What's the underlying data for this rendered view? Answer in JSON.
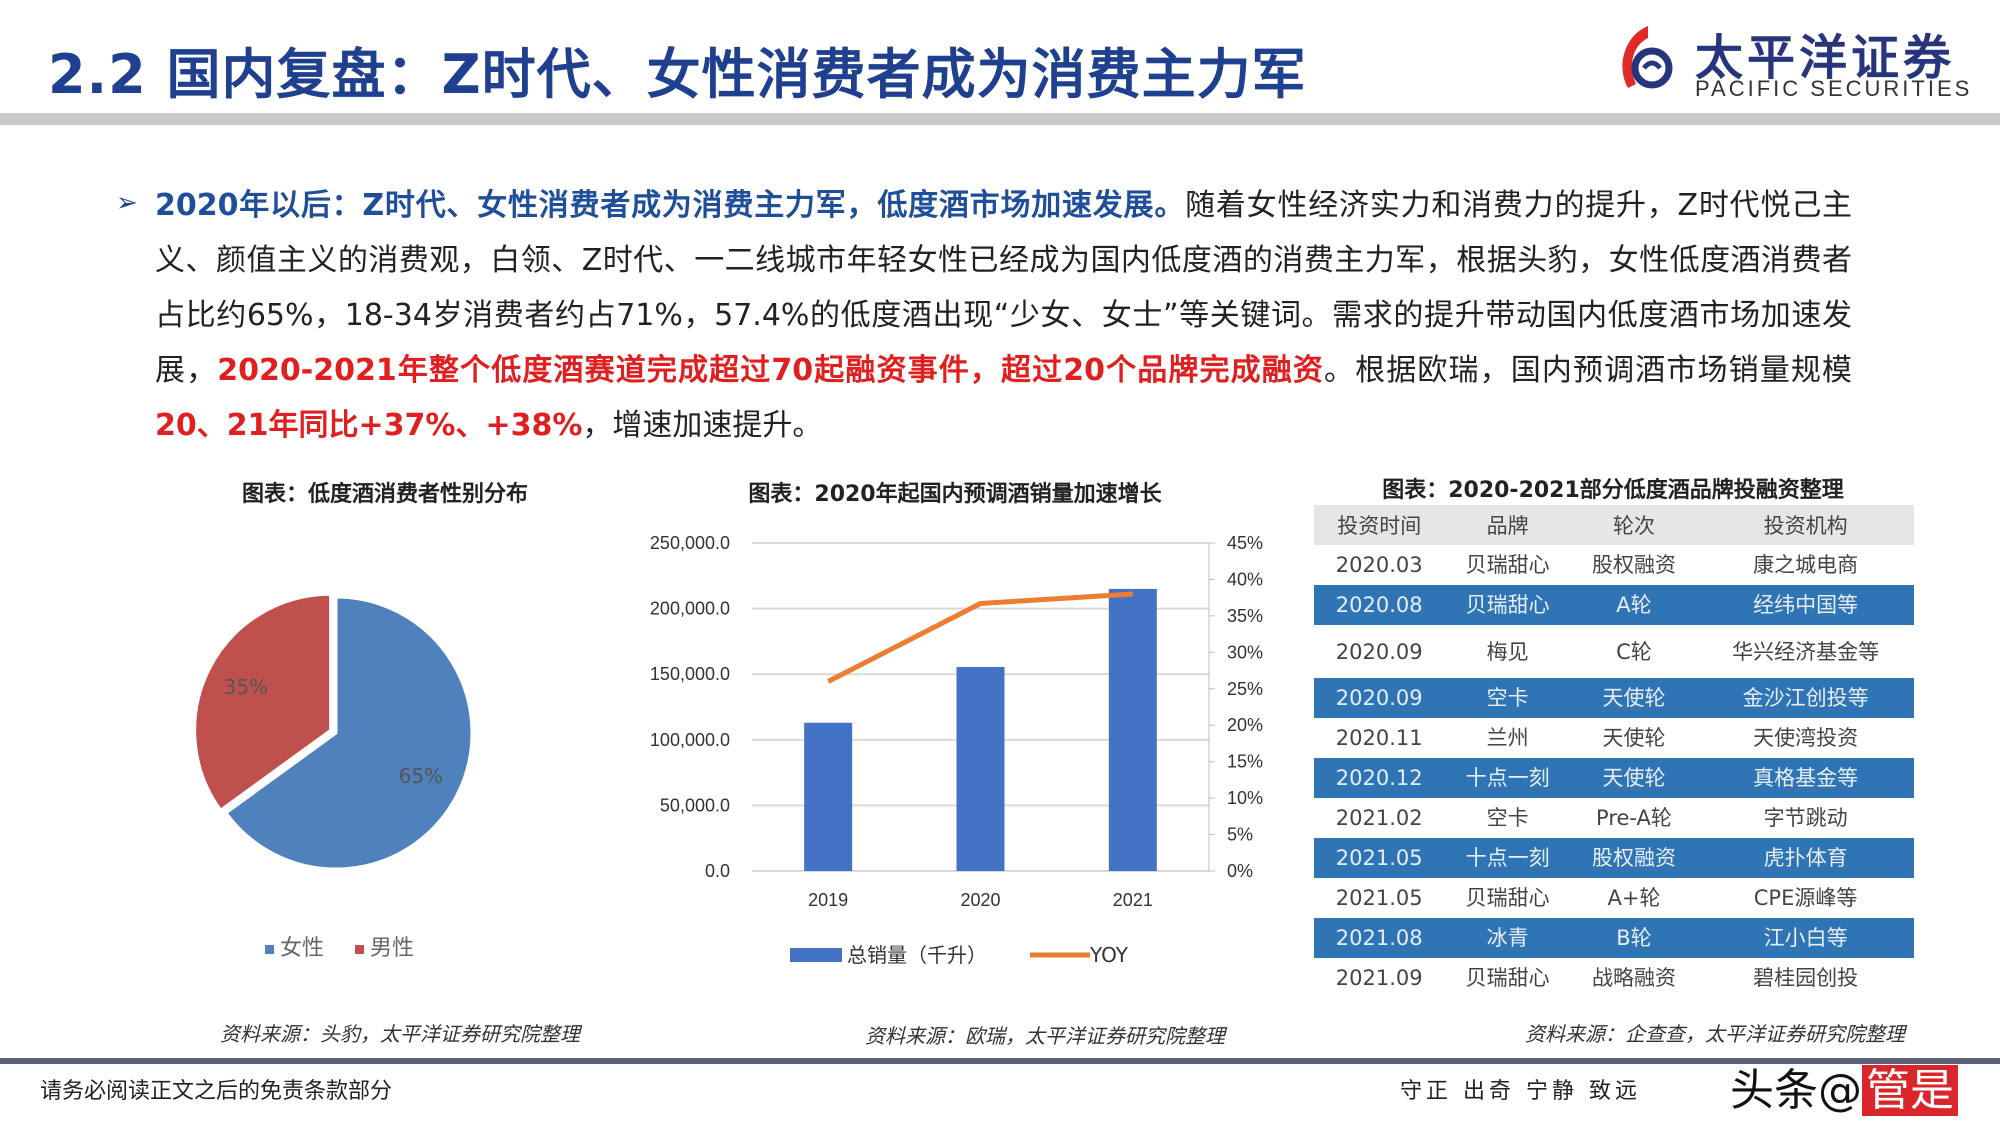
{
  "header": {
    "title": "2.2 国内复盘：Z时代、女性消费者成为消费主力军",
    "logo_cn": "太平洋证券",
    "logo_en": "PACIFIC SECURITIES"
  },
  "body": {
    "bullet_icon": "arrow-right-icon",
    "segments": [
      {
        "text": "2020年以后：Z时代、女性消费者成为消费主力军，低度酒市场加速发展。",
        "style": "blue"
      },
      {
        "text": "随着女性经济实力和消费力的提升，Z时代悦己主义、颜值主义的消费观，白领、Z时代、一二线城市年轻女性已经成为国内低度酒的消费主力军，根据头豹，女性低度酒消费者占比约65%，18-34岁消费者约占71%，57.4%的低度酒出现“少女、女士”等关键词。需求的提升带动国内低度酒市场加速发展，",
        "style": "normal"
      },
      {
        "text": "2020-2021年整个低度酒赛道完成超过70起融资事件，超过20个品牌完成融资",
        "style": "red"
      },
      {
        "text": "。根据欧瑞，国内预调酒市场销量规模",
        "style": "normal"
      },
      {
        "text": "20、21年同比+37%、+38%",
        "style": "red"
      },
      {
        "text": "，增速加速提升。",
        "style": "normal"
      }
    ]
  },
  "chart_data": [
    {
      "type": "pie",
      "title": "图表：低度酒消费者性别分布",
      "categories": [
        "女性",
        "男性"
      ],
      "values": [
        65,
        35
      ],
      "labels": [
        "65%",
        "35%"
      ],
      "colors": [
        "#4f81bd",
        "#c0504d"
      ],
      "legend": "bottom",
      "source": "资料来源：头豹，太平洋证券研究院整理"
    },
    {
      "type": "bar",
      "title": "图表：2020年起国内预调酒销量加速增长",
      "categories": [
        "2019",
        "2020",
        "2021"
      ],
      "series": [
        {
          "name": "总销量（千升）",
          "type": "bar",
          "axis": "left",
          "values": [
            113000,
            155500,
            215000
          ],
          "color": "#4472c4"
        },
        {
          "name": "YOY",
          "type": "line",
          "axis": "right",
          "values": [
            26,
            36.7,
            38
          ],
          "color": "#ed7d31"
        }
      ],
      "ylim": [
        0,
        250000
      ],
      "yticks": [
        "0.0",
        "50,000.0",
        "100,000.0",
        "150,000.0",
        "200,000.0",
        "250,000.0"
      ],
      "y2lim": [
        0,
        45
      ],
      "y2ticks": [
        "0%",
        "5%",
        "10%",
        "15%",
        "20%",
        "25%",
        "30%",
        "35%",
        "40%",
        "45%"
      ],
      "grid": true,
      "legend": "bottom",
      "source": "资料来源：欧瑞，太平洋证券研究院整理"
    },
    {
      "type": "table",
      "title": "图表：2020-2021部分低度酒品牌投融资整理",
      "columns": [
        "投资时间",
        "品牌",
        "轮次",
        "投资机构"
      ],
      "rows": [
        [
          "2020.03",
          "贝瑞甜心",
          "股权融资",
          "康之城电商"
        ],
        [
          "2020.08",
          "贝瑞甜心",
          "A轮",
          "经纬中国等"
        ],
        [
          "2020.09",
          "梅见",
          "C轮",
          "华兴经济基金等"
        ],
        [
          "2020.09",
          "空卡",
          "天使轮",
          "金沙江创投等"
        ],
        [
          "2020.11",
          "兰州",
          "天使轮",
          "天使湾投资"
        ],
        [
          "2020.12",
          "十点一刻",
          "天使轮",
          "真格基金等"
        ],
        [
          "2021.02",
          "空卡",
          "Pre-A轮",
          "字节跳动"
        ],
        [
          "2021.05",
          "十点一刻",
          "股权融资",
          "虎扑体育"
        ],
        [
          "2021.05",
          "贝瑞甜心",
          "A+轮",
          "CPE源峰等"
        ],
        [
          "2021.08",
          "冰青",
          "B轮",
          "江小白等"
        ],
        [
          "2021.09",
          "贝瑞甜心",
          "战略融资",
          "碧桂园创投"
        ]
      ],
      "highlight_color": "#2f74b5",
      "source": "资料来源：企查查，太平洋证券研究院整理"
    }
  ],
  "footer": {
    "disclaimer": "请务必阅读正文之后的免责条款部分",
    "motto": "守正 出奇 宁静 致远",
    "watermark_prefix": "头条@",
    "watermark_name": "管是"
  }
}
